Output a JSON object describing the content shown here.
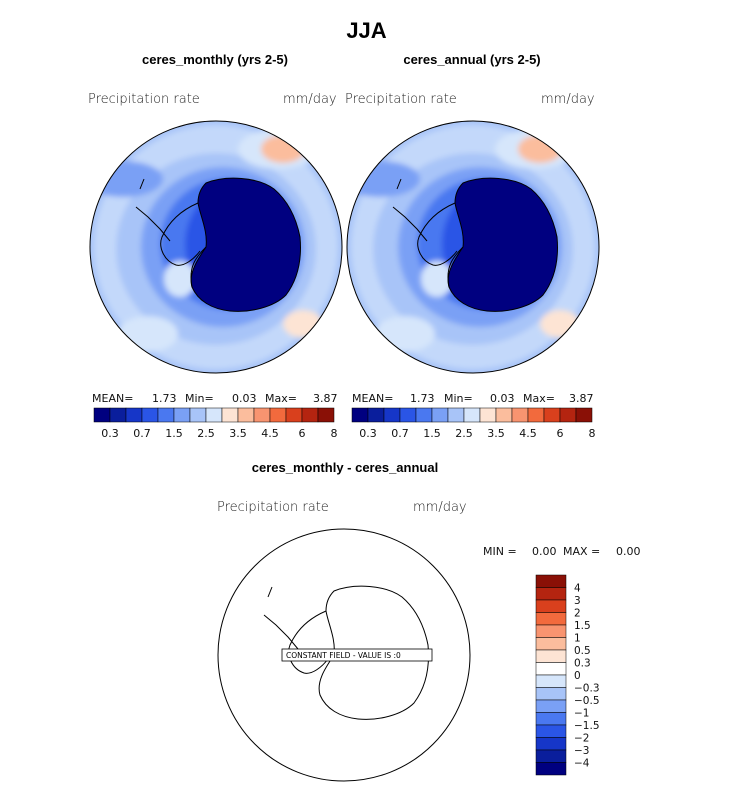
{
  "chart_data": [
    {
      "type": "heatmap",
      "title": "ceres_monthly (yrs 2-5)",
      "variable": "Precipitation rate",
      "units": "mm/day",
      "stats": {
        "mean_label": "MEAN=",
        "mean": "1.73",
        "min_label": "Min=",
        "min": "0.03",
        "max_label": "Max=",
        "max": "3.87"
      },
      "colorbar_ticks": [
        "0.3",
        "0.7",
        "1.5",
        "2.5",
        "3.5",
        "4.5",
        "6",
        "8"
      ]
    },
    {
      "type": "heatmap",
      "title": "ceres_annual (yrs 2-5)",
      "variable": "Precipitation rate",
      "units": "mm/day",
      "stats": {
        "mean_label": "MEAN=",
        "mean": "1.73",
        "min_label": "Min=",
        "min": "0.03",
        "max_label": "Max=",
        "max": "3.87"
      },
      "colorbar_ticks": [
        "0.3",
        "0.7",
        "1.5",
        "2.5",
        "3.5",
        "4.5",
        "6",
        "8"
      ]
    },
    {
      "type": "heatmap",
      "title": "ceres_monthly - ceres_annual",
      "variable": "Precipitation rate",
      "units": "mm/day",
      "stats": {
        "min_label": "MIN =",
        "min": "0.00",
        "max_label": "MAX =",
        "max": "0.00"
      },
      "annotation": "CONSTANT FIELD - VALUE IS :0",
      "colorbar_ticks": [
        "4",
        "3",
        "2",
        "1.5",
        "1",
        "0.5",
        "0.3",
        "0",
        "−0.3",
        "−0.5",
        "−1",
        "−1.5",
        "−2",
        "−3",
        "−4"
      ]
    }
  ],
  "page": {
    "title": "JJA"
  },
  "colors": {
    "precip_scale": [
      "#000080",
      "#0a1e9c",
      "#1636c8",
      "#2a55e6",
      "#4a78f0",
      "#7aa0f5",
      "#a8c4f8",
      "#d6e6fb",
      "#fde4d4",
      "#fbbd9d",
      "#f89470",
      "#f26a3d",
      "#d9401d",
      "#b42410",
      "#8a1006"
    ],
    "diff_scale": [
      "#8a1006",
      "#b42410",
      "#d9401d",
      "#f26a3d",
      "#f89470",
      "#fbbd9d",
      "#fde4d4",
      "#ffffff",
      "#d6e6fb",
      "#a8c4f8",
      "#7aa0f5",
      "#4a78f0",
      "#2a55e6",
      "#1636c8",
      "#0a1e9c",
      "#000080"
    ]
  }
}
